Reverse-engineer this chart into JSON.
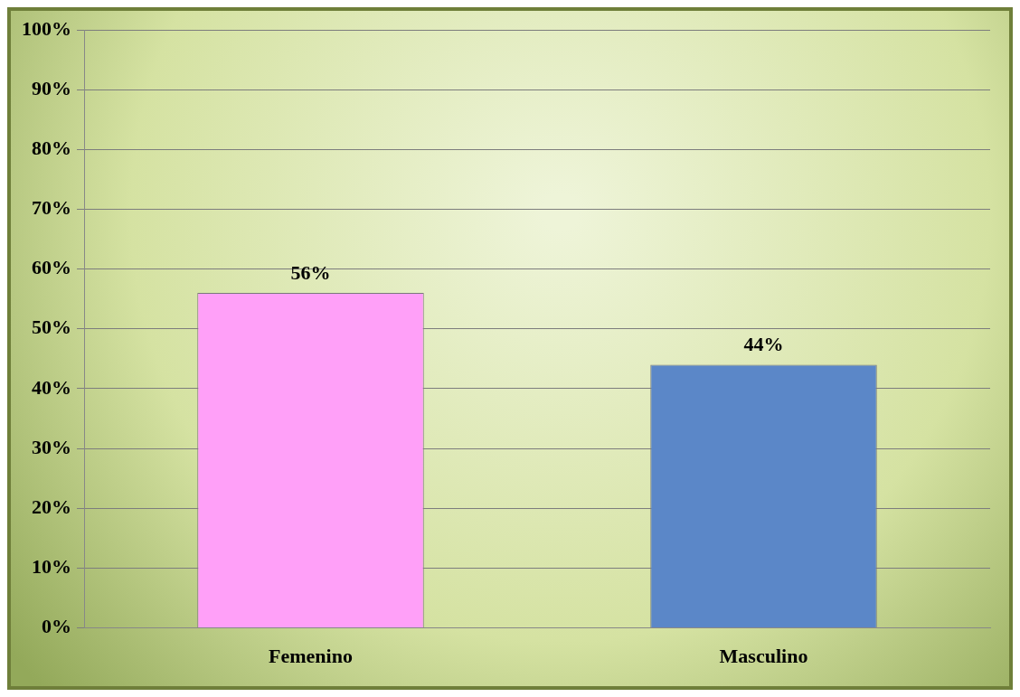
{
  "chart_data": {
    "type": "bar",
    "categories": [
      "Femenino",
      "Masculino"
    ],
    "series": [
      {
        "colors": [
          "#ffa0f8",
          "#5b87c8"
        ],
        "values": [
          56,
          44
        ],
        "value_labels": [
          "56%",
          "44%"
        ]
      }
    ],
    "ylim": [
      0,
      100
    ],
    "yticks": [
      {
        "value": 0,
        "label": "0%"
      },
      {
        "value": 10,
        "label": "10%"
      },
      {
        "value": 20,
        "label": "20%"
      },
      {
        "value": 30,
        "label": "30%"
      },
      {
        "value": 40,
        "label": "40%"
      },
      {
        "value": 50,
        "label": "50%"
      },
      {
        "value": 60,
        "label": "60%"
      },
      {
        "value": 70,
        "label": "70%"
      },
      {
        "value": 80,
        "label": "80%"
      },
      {
        "value": 90,
        "label": "90%"
      },
      {
        "value": 100,
        "label": "100%"
      }
    ],
    "grid": "y",
    "legend": false
  }
}
